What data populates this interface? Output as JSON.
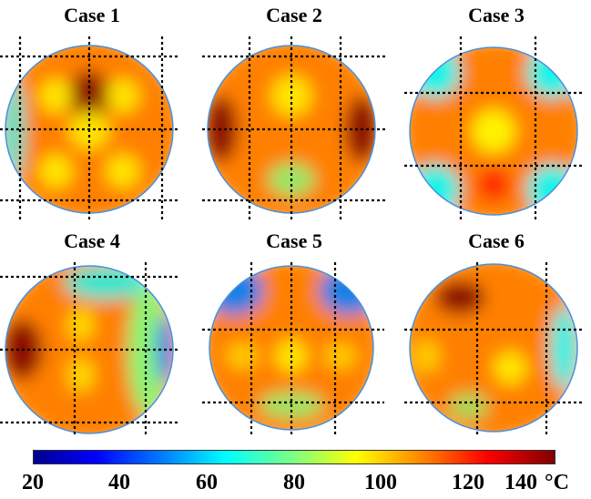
{
  "cases": [
    {
      "title": "Case 1",
      "grid": "3x3"
    },
    {
      "title": "Case 2",
      "grid": "3x3"
    },
    {
      "title": "Case 3",
      "grid": "3x3"
    },
    {
      "title": "Case 4",
      "grid": "3x3"
    },
    {
      "title": "Case 5",
      "grid": "3x3"
    },
    {
      "title": "Case 6",
      "grid": "3x3"
    }
  ],
  "colorbar": {
    "ticks": [
      "20",
      "40",
      "60",
      "80",
      "100",
      "120",
      "140"
    ],
    "unit": "°C",
    "colors": [
      "#00008f",
      "#0000ff",
      "#0080ff",
      "#00ffff",
      "#80ff80",
      "#ffff00",
      "#ff8000",
      "#ff0000",
      "#800000"
    ]
  }
}
